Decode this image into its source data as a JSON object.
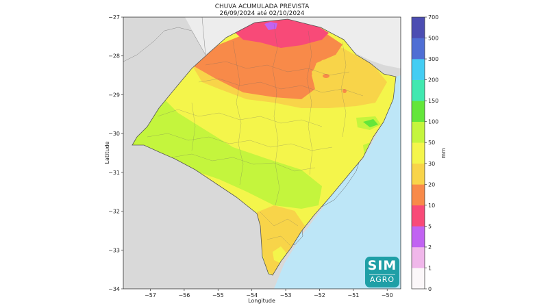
{
  "map": {
    "title": "CHUVA ACUMULADA PREVISTA",
    "subtitle": "26/09/2024 até 02/10/2024",
    "xlabel": "Longitude",
    "ylabel": "Latitude",
    "x_ticks": [
      "−57",
      "−56",
      "−55",
      "−54",
      "−53",
      "−52",
      "−51",
      "−50"
    ],
    "y_ticks": [
      "−27",
      "−28",
      "−29",
      "−30",
      "−31",
      "−32",
      "−33",
      "−34"
    ],
    "extent": {
      "lon": [
        -57.8,
        -49.6
      ],
      "lat": [
        -34,
        -27
      ]
    },
    "colors": {
      "land_outside": "#d9d9d9",
      "ocean": "#bde6f7",
      "border": "#666666"
    }
  },
  "colorbar": {
    "label": "mm",
    "levels": [
      "0",
      "1",
      "2",
      "5",
      "10",
      "20",
      "30",
      "50",
      "100",
      "150",
      "200",
      "300",
      "500",
      "700"
    ],
    "colors": [
      "#fbf7f9",
      "#f0b7ea",
      "#c163f2",
      "#f84a78",
      "#f88a49",
      "#f8d449",
      "#f4f54b",
      "#c4f53d",
      "#63e63a",
      "#41e8b0",
      "#44cdf3",
      "#4f6ed4",
      "#4c4db2"
    ]
  },
  "logo": {
    "line1": "SIM",
    "line2": "AGRO"
  }
}
